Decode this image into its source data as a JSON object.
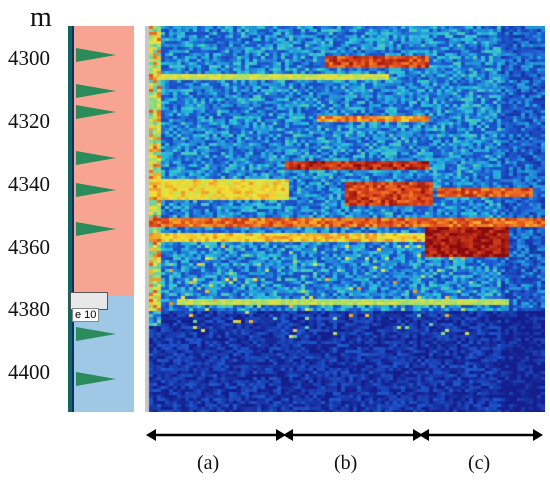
{
  "depth_axis": {
    "unit": "m",
    "ticks": [
      "4300",
      "4320",
      "4340",
      "4360",
      "4380",
      "4400"
    ]
  },
  "track": {
    "marker_label": "e 10",
    "triangle_count": 8
  },
  "periods": [
    "(a)",
    "(b)",
    "(c)"
  ],
  "colors": {
    "sand_zone": "#f7a592",
    "shale_zone": "#9fc8e6",
    "triangle": "#2a8c5a",
    "heat_low": "#1c3aa8",
    "heat_mid": "#2ec4d6",
    "heat_high": "#f2e23a",
    "heat_peak": "#a10f0f"
  }
}
